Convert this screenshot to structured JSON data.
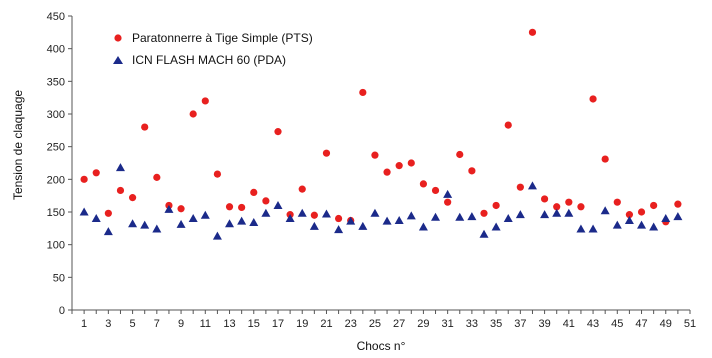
{
  "chart_data": {
    "type": "scatter",
    "xlabel": "Chocs n°",
    "ylabel": "Tension de claquage",
    "ylim": [
      0,
      450
    ],
    "yticks": [
      0,
      50,
      100,
      150,
      200,
      250,
      300,
      350,
      400,
      450
    ],
    "xlim": [
      0,
      51
    ],
    "xticks": [
      1,
      3,
      5,
      7,
      9,
      11,
      13,
      15,
      17,
      19,
      21,
      23,
      25,
      27,
      29,
      31,
      33,
      35,
      37,
      39,
      41,
      43,
      45,
      47,
      49,
      51
    ],
    "grid": false,
    "legend": "top-left",
    "series": [
      {
        "name": "Paratonnerre à Tige Simple (PTS)",
        "marker": "circle",
        "color": "#e8201f",
        "x": [
          1,
          2,
          3,
          4,
          5,
          6,
          7,
          8,
          9,
          10,
          11,
          12,
          13,
          14,
          15,
          16,
          17,
          18,
          19,
          20,
          21,
          22,
          23,
          24,
          25,
          26,
          27,
          28,
          29,
          30,
          31,
          32,
          33,
          34,
          35,
          36,
          37,
          38,
          39,
          40,
          41,
          42,
          43,
          44,
          45,
          46,
          47,
          48,
          49,
          50
        ],
        "y": [
          200,
          210,
          148,
          183,
          172,
          280,
          203,
          160,
          155,
          300,
          320,
          208,
          158,
          157,
          180,
          167,
          273,
          146,
          185,
          145,
          240,
          140,
          137,
          333,
          237,
          211,
          221,
          225,
          193,
          183,
          165,
          238,
          213,
          148,
          160,
          283,
          188,
          425,
          170,
          158,
          165,
          158,
          323,
          231,
          165,
          146,
          150,
          160,
          135,
          162
        ]
      },
      {
        "name": "ICN FLASH MACH 60 (PDA)",
        "marker": "triangle",
        "color": "#1b2a8a",
        "x": [
          1,
          2,
          3,
          4,
          5,
          6,
          7,
          8,
          9,
          10,
          11,
          12,
          13,
          14,
          15,
          16,
          17,
          18,
          19,
          20,
          21,
          22,
          23,
          24,
          25,
          26,
          27,
          28,
          29,
          30,
          31,
          32,
          33,
          34,
          35,
          36,
          37,
          38,
          39,
          40,
          41,
          42,
          43,
          44,
          45,
          46,
          47,
          48,
          49,
          50
        ],
        "y": [
          150,
          140,
          120,
          218,
          132,
          130,
          124,
          154,
          131,
          140,
          145,
          113,
          132,
          136,
          134,
          148,
          160,
          140,
          148,
          128,
          147,
          123,
          136,
          128,
          148,
          136,
          137,
          144,
          127,
          142,
          177,
          142,
          143,
          116,
          127,
          140,
          146,
          190,
          146,
          148,
          148,
          124,
          124,
          152,
          130,
          137,
          130,
          127,
          140,
          143
        ]
      }
    ]
  }
}
